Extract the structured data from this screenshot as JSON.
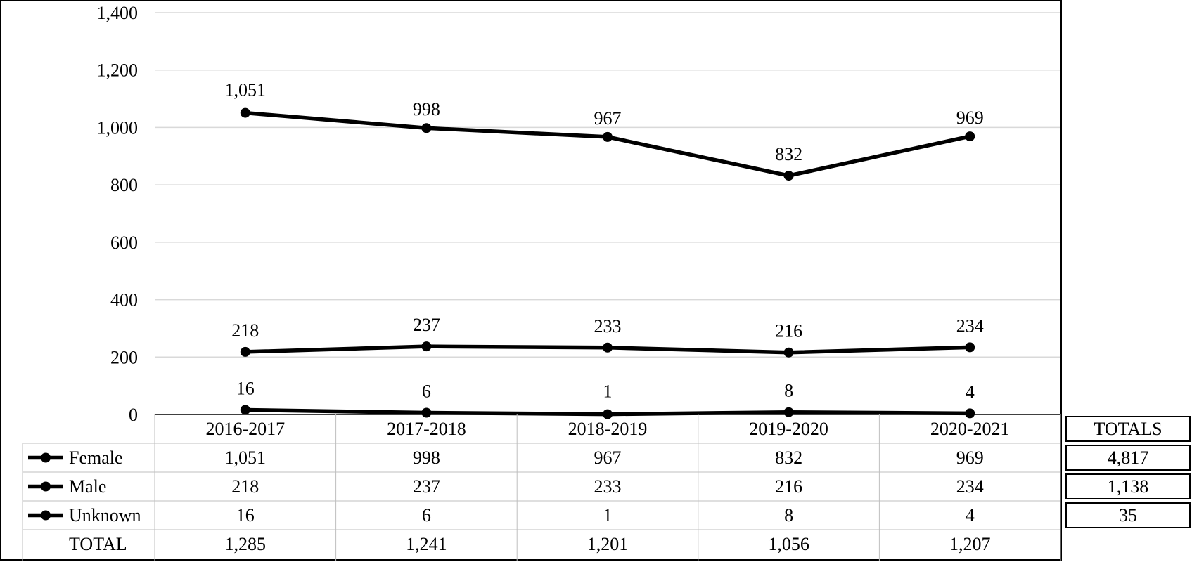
{
  "chart_data": {
    "type": "line",
    "categories": [
      "2016-2017",
      "2017-2018",
      "2018-2019",
      "2019-2020",
      "2020-2021"
    ],
    "series": [
      {
        "name": "Female",
        "values": [
          1051,
          998,
          967,
          832,
          969
        ]
      },
      {
        "name": "Male",
        "values": [
          218,
          237,
          233,
          216,
          234
        ]
      },
      {
        "name": "Unknown",
        "values": [
          16,
          6,
          1,
          8,
          4
        ]
      }
    ],
    "ylim": [
      0,
      1400
    ],
    "yticks": [
      0,
      200,
      400,
      600,
      800,
      1000,
      1200,
      1400
    ],
    "ytick_labels": [
      "0",
      "200",
      "400",
      "600",
      "800",
      "1,000",
      "1,200",
      "1,400"
    ],
    "data_labels": [
      [
        "1,051",
        "998",
        "967",
        "832",
        "969"
      ],
      [
        "218",
        "237",
        "233",
        "216",
        "234"
      ],
      [
        "16",
        "6",
        "1",
        "8",
        "4"
      ]
    ],
    "grid": true,
    "line_color": "#000000",
    "grid_color": "#d9d9d9",
    "data_table": {
      "rows": [
        {
          "label": "Female",
          "values": [
            "1,051",
            "998",
            "967",
            "832",
            "969"
          ]
        },
        {
          "label": "Male",
          "values": [
            "218",
            "237",
            "233",
            "216",
            "234"
          ]
        },
        {
          "label": "Unknown",
          "values": [
            "16",
            "6",
            "1",
            "8",
            "4"
          ]
        },
        {
          "label": "TOTAL",
          "values": [
            "1,285",
            "1,241",
            "1,201",
            "1,056",
            "1,207"
          ]
        }
      ]
    },
    "totals": {
      "header": "TOTALS",
      "values": [
        "4,817",
        "1,138",
        "35"
      ]
    }
  }
}
